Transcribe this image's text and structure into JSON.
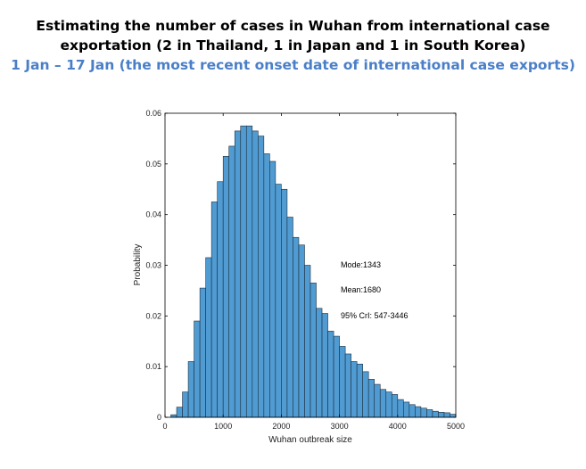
{
  "header": {
    "title_line1": "Estimating the number of cases in Wuhan from international case",
    "title_line2": "exportation (2 in Thailand, 1 in Japan and 1 in South Korea)",
    "subtitle": "1 Jan – 17 Jan (the most recent onset date of international case exports)"
  },
  "colors": {
    "bar_fill": "#4f9bd2",
    "bar_edge": "#1f2f3f",
    "subtitle": "#4a7fc8"
  },
  "chart_data": {
    "type": "bar",
    "title": "",
    "xlabel": "Wuhan outbreak size",
    "ylabel": "Probability",
    "xlim": [
      0,
      5000
    ],
    "ylim": [
      0,
      0.06
    ],
    "xticks": [
      "0",
      "1000",
      "2000",
      "3000",
      "4000",
      "5000"
    ],
    "yticks": [
      "0",
      "0.01",
      "0.02",
      "0.03",
      "0.04",
      "0.05",
      "0.06"
    ],
    "bin_width": 100,
    "bin_starts": [
      100,
      200,
      300,
      400,
      500,
      600,
      700,
      800,
      900,
      1000,
      1100,
      1200,
      1300,
      1400,
      1500,
      1600,
      1700,
      1800,
      1900,
      2000,
      2100,
      2200,
      2300,
      2400,
      2500,
      2600,
      2700,
      2800,
      2900,
      3000,
      3100,
      3200,
      3300,
      3400,
      3500,
      3600,
      3700,
      3800,
      3900,
      4000,
      4100,
      4200,
      4300,
      4400,
      4500,
      4600,
      4700,
      4800,
      4900
    ],
    "values": [
      0.0005,
      0.002,
      0.005,
      0.011,
      0.019,
      0.0255,
      0.0315,
      0.0425,
      0.0465,
      0.0515,
      0.0535,
      0.0565,
      0.0575,
      0.0575,
      0.0565,
      0.0555,
      0.052,
      0.0505,
      0.046,
      0.045,
      0.0395,
      0.0355,
      0.034,
      0.03,
      0.0265,
      0.0215,
      0.0205,
      0.017,
      0.016,
      0.014,
      0.0125,
      0.011,
      0.0105,
      0.009,
      0.0075,
      0.0065,
      0.0055,
      0.005,
      0.0045,
      0.0035,
      0.003,
      0.0025,
      0.0021,
      0.0018,
      0.0015,
      0.0012,
      0.001,
      0.0009,
      0.0006
    ],
    "grid": false,
    "annotations": [
      "Mode:1343",
      "Mean:1680",
      "95% CrI: 547-3446"
    ]
  }
}
